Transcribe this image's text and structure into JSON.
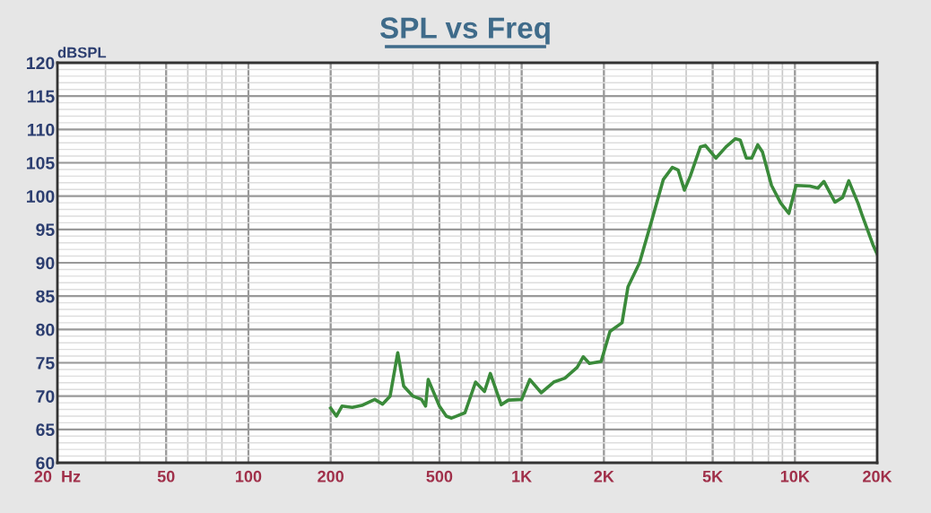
{
  "chart_data": {
    "type": "line",
    "title": "SPL vs Freq",
    "ylabel": "dBSPL",
    "log": "x",
    "grid": true,
    "marker": "none",
    "line_style": "solid",
    "xlim": [
      20,
      20000
    ],
    "ylim": [
      60,
      120
    ],
    "xticks": [
      {
        "value": 20,
        "label": "20  Hz"
      },
      50,
      100,
      200,
      500,
      {
        "value": 1000,
        "label": "1K"
      },
      {
        "value": 2000,
        "label": "2K"
      },
      {
        "value": 5000,
        "label": "5K"
      },
      {
        "value": 10000,
        "label": "10K"
      },
      {
        "value": 20000,
        "label": "20K"
      }
    ],
    "yticks": [
      60,
      65,
      70,
      75,
      80,
      85,
      90,
      95,
      100,
      105,
      110,
      115,
      120
    ],
    "series": [
      {
        "color": "#3a8a3a",
        "x": [
          200,
          210,
          220,
          240,
          260,
          290,
          310,
          330,
          352,
          370,
          400,
          430,
          445,
          455,
          500,
          530,
          554,
          620,
          678,
          731,
          768,
          842,
          894,
          1000,
          1071,
          1180,
          1310,
          1440,
          1596,
          1680,
          1770,
          1954,
          2105,
          2330,
          2450,
          2700,
          2990,
          3300,
          3560,
          3740,
          3940,
          4140,
          4510,
          4700,
          5140,
          5600,
          6060,
          6310,
          6640,
          6950,
          7310,
          7610,
          8210,
          8860,
          9500,
          10090,
          11350,
          12140,
          12770,
          14010,
          14950,
          15740,
          17030,
          17600,
          19300,
          20000
        ],
        "values": [
          68.2,
          67,
          68.5,
          68.3,
          68.6,
          69.5,
          68.8,
          70,
          76.5,
          71.5,
          70,
          69.5,
          68.5,
          72.5,
          68.5,
          67,
          66.7,
          67.5,
          72.1,
          70.7,
          73.4,
          68.7,
          69.4,
          69.5,
          72.5,
          70.5,
          72.1,
          72.7,
          74.3,
          75.9,
          74.9,
          75.2,
          79.7,
          81,
          86.4,
          90,
          96.3,
          102.5,
          104.3,
          103.9,
          100.9,
          103,
          107.4,
          107.6,
          105.7,
          107.4,
          108.6,
          108.4,
          105.7,
          105.7,
          107.7,
          106.6,
          101.6,
          99,
          97.4,
          101.6,
          101.5,
          101.2,
          102.2,
          99.1,
          99.8,
          102.3,
          98.9,
          97.2,
          92.7,
          91.3
        ]
      }
    ]
  }
}
